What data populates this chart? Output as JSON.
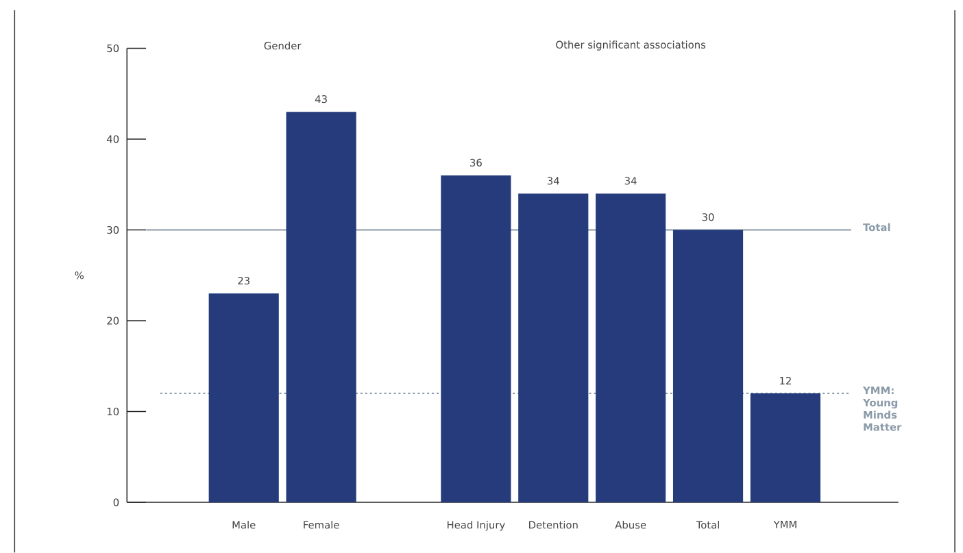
{
  "chart_data": {
    "type": "bar",
    "categories": [
      "Male",
      "Female",
      null,
      "Head Injury",
      "Detention",
      "Abuse",
      "Total",
      "YMM"
    ],
    "values": [
      23,
      43,
      null,
      36,
      34,
      34,
      30,
      12
    ],
    "color": "#253b7c",
    "ylabel": "%",
    "ylim": [
      0,
      50
    ],
    "yticks": [
      0,
      10,
      20,
      30,
      40,
      50
    ],
    "data_labels": true,
    "grid": false,
    "annotations": [
      "Gender",
      "Other significant associations"
    ],
    "ref_lines": [
      {
        "axis": "y",
        "value": 30,
        "label": "Total",
        "color": "#8a9aa8",
        "line_style": "solid"
      },
      {
        "axis": "y",
        "value": 12,
        "label": "YMM: Young Minds Matter",
        "color": "#8a9aa8",
        "line_style": "dotted"
      }
    ]
  }
}
